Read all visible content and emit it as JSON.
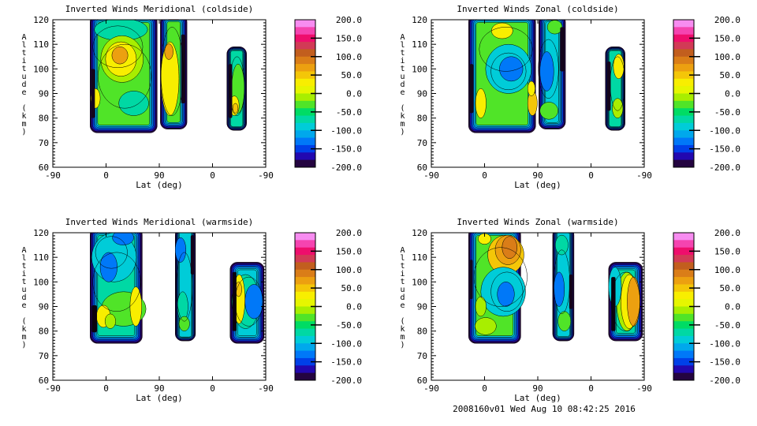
{
  "chart_data": {
    "type": "contour",
    "footer_note": "2008160v01 Wed Aug 10 08:42:25 2016",
    "axes": {
      "xlabel": "Lat (deg)",
      "ylabel": "Altitude (km)",
      "xtick_labels": [
        "-90",
        "0",
        "90",
        "0",
        "-90"
      ],
      "ytick_values": [
        120,
        110,
        100,
        90,
        80,
        70,
        60
      ],
      "alt_min": 60,
      "alt_max": 120,
      "y_minor_step_km": 1.25,
      "grid": false
    },
    "colorbar": {
      "min": -200,
      "max": 200,
      "tick_step": 50,
      "tick_labels": [
        "200.0",
        "150.0",
        "100.0",
        "50.0",
        "0.0",
        "-50.0",
        "-100.0",
        "-150.0",
        "-200.0"
      ],
      "band_colors_top_to_bottom": [
        "#f78cf0",
        "#f544b0",
        "#ee0e6c",
        "#d23a56",
        "#c25e1e",
        "#da7d18",
        "#eca010",
        "#f4c608",
        "#f8ee00",
        "#e6f600",
        "#a8ee00",
        "#50e428",
        "#00dc64",
        "#00d8a4",
        "#00ccd8",
        "#00a8ec",
        "#0078f8",
        "#0040e8",
        "#2208b0",
        "#240440"
      ]
    },
    "edge_ring_colors_outer_to_inner": [
      "#240440",
      "#2208b0",
      "#0040e8",
      "#0078f8",
      "#00a8ec",
      "#00ccd8"
    ],
    "panels": [
      {
        "id": "meridional-coldside",
        "title": "Inverted Winds Meridional (coldside)",
        "patches": [
          {
            "x0": 0.7,
            "x1": 1.96,
            "aTop": 122,
            "aBot": 74,
            "base": "#50e428",
            "f": [
              {
                "t": "e",
                "x": 1.28,
                "alt": 116,
                "rx": 0.5,
                "ry": 4.5,
                "c": "#00d8a4"
              },
              {
                "t": "e",
                "x": 1.52,
                "alt": 86,
                "rx": 0.28,
                "ry": 5,
                "c": "#00d8a4"
              },
              {
                "t": "e",
                "x": 1.3,
                "alt": 104,
                "rx": 0.4,
                "ry": 9.5,
                "c": "#a8ee00"
              },
              {
                "t": "e",
                "x": 1.28,
                "alt": 104,
                "rx": 0.29,
                "ry": 7,
                "c": "#f8ee00"
              },
              {
                "t": "e",
                "x": 1.26,
                "alt": 105.5,
                "rx": 0.15,
                "ry": 3.5,
                "c": "#eca010"
              },
              {
                "t": "e",
                "x": 0.8,
                "alt": 88,
                "rx": 0.09,
                "ry": 4,
                "c": "#f8ee00"
              },
              {
                "t": "bar",
                "x": 0.72,
                "alt": 90,
                "w": 0.07,
                "h": 20,
                "c": "#14041c"
              },
              {
                "t": "o",
                "x": 1.35,
                "alt": 97,
                "rx": 0.5,
                "ry": 13
              },
              {
                "t": "o",
                "x": 1.22,
                "alt": 109,
                "rx": 0.47,
                "ry": 8.5
              }
            ]
          },
          {
            "x0": 2.02,
            "x1": 2.52,
            "aTop": 122,
            "aBot": 75.5,
            "base": "#50e428",
            "f": [
              {
                "t": "e",
                "x": 2.2,
                "alt": 96,
                "rx": 0.17,
                "ry": 15,
                "c": "#f8ee00"
              },
              {
                "t": "e",
                "x": 2.18,
                "alt": 107,
                "rx": 0.08,
                "ry": 3.2,
                "c": "#eca010"
              },
              {
                "t": "bar",
                "x": 2.41,
                "alt": 100,
                "w": 0.08,
                "h": 28,
                "c": "#14041c"
              },
              {
                "t": "o",
                "x": 2.24,
                "alt": 99,
                "rx": 0.21,
                "ry": 18
              }
            ]
          },
          {
            "x0": 3.27,
            "x1": 3.64,
            "aTop": 109,
            "aBot": 75,
            "base": "#00d8a4",
            "f": [
              {
                "t": "e",
                "x": 3.48,
                "alt": 92,
                "rx": 0.12,
                "ry": 10,
                "c": "#50e428"
              },
              {
                "t": "e",
                "x": 3.41,
                "alt": 85,
                "rx": 0.09,
                "ry": 4,
                "c": "#f8ee00"
              },
              {
                "t": "e",
                "x": 3.43,
                "alt": 84,
                "rx": 0.05,
                "ry": 2,
                "c": "#f4c608"
              },
              {
                "t": "bar",
                "x": 3.3,
                "alt": 91,
                "w": 0.07,
                "h": 22,
                "c": "#14041c"
              },
              {
                "t": "o",
                "x": 3.46,
                "alt": 93,
                "rx": 0.14,
                "ry": 12
              }
            ]
          }
        ]
      },
      {
        "id": "zonal-coldside",
        "title": "Inverted Winds Zonal (coldside)",
        "patches": [
          {
            "x0": 0.7,
            "x1": 1.96,
            "aTop": 122,
            "aBot": 74,
            "base": "#50e428",
            "f": [
              {
                "t": "e",
                "x": 1.45,
                "alt": 100,
                "rx": 0.43,
                "ry": 10,
                "c": "#00ccd8"
              },
              {
                "t": "e",
                "x": 1.5,
                "alt": 100,
                "rx": 0.22,
                "ry": 5,
                "c": "#0078f8"
              },
              {
                "t": "e",
                "x": 1.33,
                "alt": 115.5,
                "rx": 0.2,
                "ry": 3.2,
                "c": "#f8ee00"
              },
              {
                "t": "e",
                "x": 0.93,
                "alt": 86,
                "rx": 0.1,
                "ry": 6,
                "c": "#f8ee00"
              },
              {
                "t": "e",
                "x": 1.9,
                "alt": 86,
                "rx": 0.09,
                "ry": 5,
                "c": "#f4c608"
              },
              {
                "t": "e",
                "x": 1.88,
                "alt": 92,
                "rx": 0.07,
                "ry": 3,
                "c": "#f8ee00"
              },
              {
                "t": "bar",
                "x": 0.72,
                "alt": 92,
                "w": 0.07,
                "h": 20,
                "c": "#14041c"
              },
              {
                "t": "o",
                "x": 1.4,
                "alt": 108,
                "rx": 0.5,
                "ry": 9
              },
              {
                "t": "o",
                "x": 1.45,
                "alt": 99,
                "rx": 0.33,
                "ry": 7.5
              }
            ]
          },
          {
            "x0": 2.02,
            "x1": 2.52,
            "aTop": 122,
            "aBot": 75.5,
            "base": "#00ccd8",
            "f": [
              {
                "t": "e",
                "x": 2.17,
                "alt": 99,
                "rx": 0.13,
                "ry": 8,
                "c": "#0078f8"
              },
              {
                "t": "e",
                "x": 2.21,
                "alt": 83,
                "rx": 0.17,
                "ry": 3.5,
                "c": "#50e428"
              },
              {
                "t": "e",
                "x": 2.32,
                "alt": 117,
                "rx": 0.14,
                "ry": 2.8,
                "c": "#50e428"
              },
              {
                "t": "bar",
                "x": 2.42,
                "alt": 108,
                "w": 0.08,
                "h": 18,
                "c": "#14041c"
              },
              {
                "t": "o",
                "x": 2.2,
                "alt": 100,
                "rx": 0.19,
                "ry": 12
              }
            ]
          },
          {
            "x0": 3.27,
            "x1": 3.64,
            "aTop": 109,
            "aBot": 75,
            "base": "#00d8a4",
            "f": [
              {
                "t": "e",
                "x": 3.52,
                "alt": 101,
                "rx": 0.1,
                "ry": 5,
                "c": "#f8ee00"
              },
              {
                "t": "e",
                "x": 3.5,
                "alt": 84,
                "rx": 0.1,
                "ry": 4,
                "c": "#a8ee00"
              },
              {
                "t": "bar",
                "x": 3.3,
                "alt": 93,
                "w": 0.07,
                "h": 20,
                "c": "#14041c"
              },
              {
                "t": "o",
                "x": 3.5,
                "alt": 94,
                "rx": 0.14,
                "ry": 11
              }
            ]
          }
        ]
      },
      {
        "id": "meridional-warmside",
        "title": "Inverted Winds Meridional (warmside)",
        "patches": [
          {
            "x0": 0.7,
            "x1": 1.68,
            "aTop": 122,
            "aBot": 75,
            "base": "#00d8a4",
            "f": [
              {
                "t": "e",
                "x": 1.15,
                "alt": 110,
                "rx": 0.42,
                "ry": 10,
                "c": "#00ccd8"
              },
              {
                "t": "e",
                "x": 1.05,
                "alt": 106,
                "rx": 0.16,
                "ry": 6,
                "c": "#0078f8"
              },
              {
                "t": "e",
                "x": 1.32,
                "alt": 118,
                "rx": 0.2,
                "ry": 3,
                "c": "#0078f8"
              },
              {
                "t": "e",
                "x": 1.33,
                "alt": 89,
                "rx": 0.42,
                "ry": 7,
                "c": "#50e428"
              },
              {
                "t": "e",
                "x": 1.56,
                "alt": 90,
                "rx": 0.11,
                "ry": 8,
                "c": "#f8ee00"
              },
              {
                "t": "e",
                "x": 0.95,
                "alt": 86,
                "rx": 0.13,
                "ry": 4.5,
                "c": "#f8ee00"
              },
              {
                "t": "e",
                "x": 1.08,
                "alt": 84,
                "rx": 0.1,
                "ry": 3,
                "c": "#a8ee00"
              },
              {
                "t": "bar",
                "x": 0.73,
                "alt": 85,
                "w": 0.1,
                "h": 11,
                "c": "#0a020e"
              },
              {
                "t": "o",
                "x": 1.2,
                "alt": 100,
                "rx": 0.45,
                "ry": 12
              },
              {
                "t": "o",
                "x": 1.1,
                "alt": 112,
                "rx": 0.3,
                "ry": 6.5
              }
            ]
          },
          {
            "x0": 2.3,
            "x1": 2.68,
            "aTop": 122,
            "aBot": 76,
            "base": "#00ccd8",
            "f": [
              {
                "t": "e",
                "x": 2.44,
                "alt": 90,
                "rx": 0.1,
                "ry": 6,
                "c": "#00d8a4"
              },
              {
                "t": "e",
                "x": 2.47,
                "alt": 83,
                "rx": 0.1,
                "ry": 3,
                "c": "#50e428"
              },
              {
                "t": "e",
                "x": 2.4,
                "alt": 113,
                "rx": 0.1,
                "ry": 5,
                "c": "#0078f8"
              },
              {
                "t": "bar",
                "x": 2.59,
                "alt": 111,
                "w": 0.07,
                "h": 16,
                "c": "#14041c"
              },
              {
                "t": "o",
                "x": 2.47,
                "alt": 98,
                "rx": 0.15,
                "ry": 14
              }
            ]
          },
          {
            "x0": 3.33,
            "x1": 3.97,
            "aTop": 108,
            "aBot": 75,
            "base": "#00ccd8",
            "f": [
              {
                "t": "e",
                "x": 3.62,
                "alt": 92,
                "rx": 0.26,
                "ry": 11,
                "c": "#00d8a4"
              },
              {
                "t": "e",
                "x": 3.78,
                "alt": 92,
                "rx": 0.17,
                "ry": 7,
                "c": "#0078f8"
              },
              {
                "t": "e",
                "x": 3.5,
                "alt": 93,
                "rx": 0.11,
                "ry": 10,
                "c": "#f8ee00"
              },
              {
                "t": "e",
                "x": 3.49,
                "alt": 97,
                "rx": 0.06,
                "ry": 3,
                "c": "#f4c608"
              },
              {
                "t": "bar",
                "x": 3.37,
                "alt": 92,
                "w": 0.08,
                "h": 24,
                "c": "#0a020e"
              },
              {
                "t": "o",
                "x": 3.68,
                "alt": 92,
                "rx": 0.26,
                "ry": 10
              }
            ]
          }
        ]
      },
      {
        "id": "zonal-warmside",
        "title": "Inverted Winds Zonal (warmside)",
        "patches": [
          {
            "x0": 0.7,
            "x1": 1.68,
            "aTop": 122,
            "aBot": 75,
            "base": "#50e428",
            "f": [
              {
                "t": "e",
                "x": 1.4,
                "alt": 111,
                "rx": 0.34,
                "ry": 8,
                "c": "#f4c608"
              },
              {
                "t": "e",
                "x": 1.44,
                "alt": 113,
                "rx": 0.24,
                "ry": 6,
                "c": "#eca010"
              },
              {
                "t": "e",
                "x": 1.47,
                "alt": 114,
                "rx": 0.14,
                "ry": 4.5,
                "c": "#da7d18"
              },
              {
                "t": "e",
                "x": 1.0,
                "alt": 117.5,
                "rx": 0.12,
                "ry": 2.2,
                "c": "#f8ee00"
              },
              {
                "t": "e",
                "x": 1.35,
                "alt": 96,
                "rx": 0.42,
                "ry": 10,
                "c": "#00ccd8"
              },
              {
                "t": "e",
                "x": 1.4,
                "alt": 95,
                "rx": 0.16,
                "ry": 5,
                "c": "#0078f8"
              },
              {
                "t": "e",
                "x": 1.02,
                "alt": 82,
                "rx": 0.2,
                "ry": 3.5,
                "c": "#a8ee00"
              },
              {
                "t": "e",
                "x": 0.93,
                "alt": 90,
                "rx": 0.1,
                "ry": 4,
                "c": "#a8ee00"
              },
              {
                "t": "bar",
                "x": 0.72,
                "alt": 101,
                "w": 0.06,
                "h": 16,
                "c": "#14041c"
              },
              {
                "t": "o",
                "x": 1.3,
                "alt": 102,
                "rx": 0.5,
                "ry": 12
              },
              {
                "t": "o",
                "x": 1.42,
                "alt": 96,
                "rx": 0.3,
                "ry": 8
              }
            ]
          },
          {
            "x0": 2.28,
            "x1": 2.68,
            "aTop": 122,
            "aBot": 76,
            "base": "#00ccd8",
            "f": [
              {
                "t": "e",
                "x": 2.45,
                "alt": 115,
                "rx": 0.12,
                "ry": 4,
                "c": "#00d8a4"
              },
              {
                "t": "e",
                "x": 2.4,
                "alt": 97,
                "rx": 0.1,
                "ry": 7,
                "c": "#0078f8"
              },
              {
                "t": "e",
                "x": 2.5,
                "alt": 84,
                "rx": 0.12,
                "ry": 4,
                "c": "#50e428"
              },
              {
                "t": "bar",
                "x": 2.59,
                "alt": 96,
                "w": 0.07,
                "h": 14,
                "c": "#14041c"
              },
              {
                "t": "o",
                "x": 2.45,
                "alt": 100,
                "rx": 0.15,
                "ry": 13
              }
            ]
          },
          {
            "x0": 3.33,
            "x1": 3.97,
            "aTop": 108,
            "aBot": 76,
            "base": "#00d8a4",
            "f": [
              {
                "t": "e",
                "x": 3.68,
                "alt": 92,
                "rx": 0.2,
                "ry": 12,
                "c": "#a8ee00"
              },
              {
                "t": "e",
                "x": 3.72,
                "alt": 92,
                "rx": 0.16,
                "ry": 11,
                "c": "#f8ee00"
              },
              {
                "t": "e",
                "x": 3.8,
                "alt": 92,
                "rx": 0.12,
                "ry": 10,
                "c": "#eca010"
              },
              {
                "t": "e",
                "x": 3.45,
                "alt": 98,
                "rx": 0.12,
                "ry": 8,
                "c": "#00ccd8"
              },
              {
                "t": "bar",
                "x": 3.38,
                "alt": 91,
                "w": 0.08,
                "h": 22,
                "c": "#0a020e"
              },
              {
                "t": "o",
                "x": 3.65,
                "alt": 92,
                "rx": 0.27,
                "ry": 12
              }
            ]
          }
        ]
      }
    ]
  }
}
